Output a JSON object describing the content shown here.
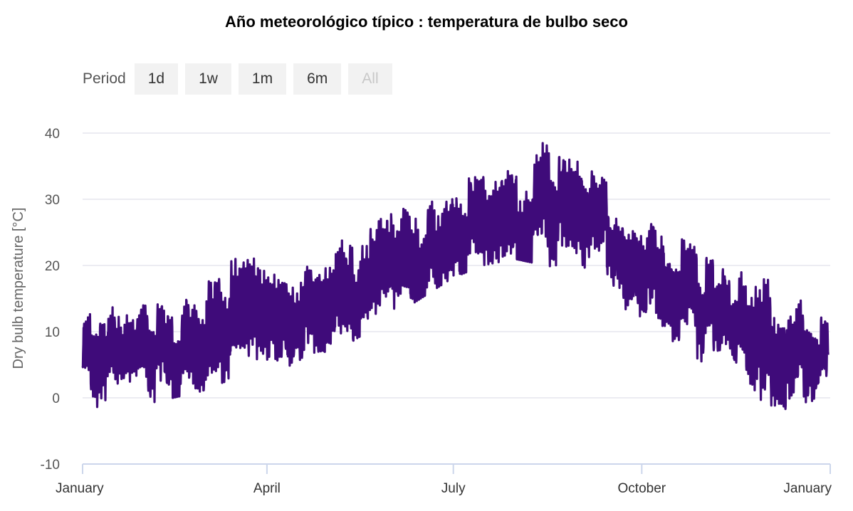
{
  "chart_title": "Año meteorológico típico : temperatura de bulbo seco",
  "range_selector": {
    "label": "Period",
    "buttons": [
      {
        "label": "1d",
        "state": "enabled"
      },
      {
        "label": "1w",
        "state": "enabled"
      },
      {
        "label": "1m",
        "state": "enabled"
      },
      {
        "label": "6m",
        "state": "enabled"
      },
      {
        "label": "All",
        "state": "disabled"
      }
    ]
  },
  "colors": {
    "series": "#3f0b7a",
    "grid": "#d9d9e6",
    "axis": "#ccd6eb"
  },
  "chart_data": {
    "type": "line",
    "title": "Año meteorológico típico : temperatura de bulbo seco",
    "ylabel": "Dry bulb temperature [°C]",
    "xlabel": "",
    "ylim": [
      -10,
      40
    ],
    "xlim": [
      "January 1",
      "January 1 (next year)"
    ],
    "y_ticks": [
      "-10",
      "0",
      "10",
      "20",
      "30",
      "40"
    ],
    "x_ticks": [
      {
        "label": "January",
        "month": 1
      },
      {
        "label": "April",
        "month": 4
      },
      {
        "label": "July",
        "month": 7
      },
      {
        "label": "October",
        "month": 10
      },
      {
        "label": "January",
        "month": 13
      }
    ],
    "grid": true,
    "legend": "none",
    "series": [
      {
        "x_unit": "day of year",
        "values": {
          "day": [
            1,
            10,
            20,
            31,
            45,
            59,
            75,
            90,
            105,
            120,
            135,
            151,
            166,
            181,
            196,
            212,
            227,
            243,
            258,
            273,
            288,
            304,
            319,
            334,
            349,
            365
          ],
          "daily_mean": [
            7,
            6,
            6,
            7,
            6,
            8,
            10,
            12,
            11,
            13,
            16,
            19,
            21,
            24,
            26,
            27,
            28,
            27,
            25,
            19,
            16,
            14,
            11,
            7,
            6,
            7
          ],
          "daily_min": [
            1,
            -2,
            0,
            -1,
            0,
            1,
            3,
            4,
            5,
            6,
            9,
            12,
            15,
            18,
            20,
            21,
            20,
            19,
            17,
            10,
            7,
            5,
            3,
            -1,
            -2,
            1
          ],
          "daily_max": [
            13,
            17,
            13,
            14,
            17,
            20,
            24,
            22,
            21,
            25,
            28,
            30,
            32,
            35,
            37,
            38,
            41,
            38,
            32,
            27,
            25,
            22,
            18,
            22,
            15,
            14
          ]
        }
      }
    ]
  }
}
